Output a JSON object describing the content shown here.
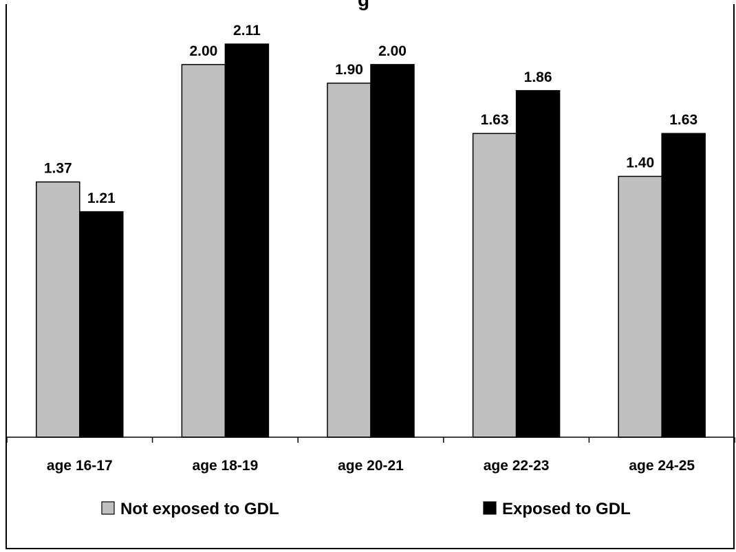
{
  "chart_data": {
    "type": "bar",
    "title_visible_fragment": "g",
    "categories": [
      "age 16-17",
      "age 18-19",
      "age 20-21",
      "age 22-23",
      "age 24-25"
    ],
    "series": [
      {
        "name": "Not exposed to GDL",
        "color": "#c0c0c0",
        "values": [
          1.37,
          2.0,
          1.9,
          1.63,
          1.4
        ],
        "labels": [
          "1.37",
          "2.00",
          "1.90",
          "1.63",
          "1.40"
        ]
      },
      {
        "name": "Exposed to GDL",
        "color": "#000000",
        "values": [
          1.21,
          2.11,
          2.0,
          1.86,
          1.63
        ],
        "labels": [
          "1.21",
          "2.11",
          "2.00",
          "1.86",
          "1.63"
        ]
      }
    ],
    "ylim": [
      0,
      2.28
    ],
    "grid": false,
    "legend_position": "bottom"
  }
}
